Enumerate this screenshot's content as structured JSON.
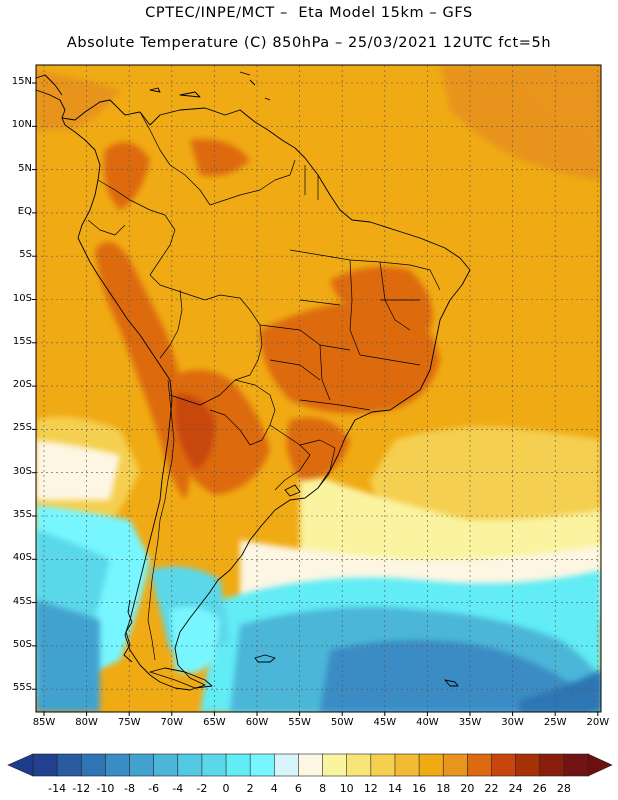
{
  "header": {
    "title_line1": "CPTEC/INPE/MCT –  Eta Model 15km – GFS",
    "title_line2": "Absolute Temperature (C) 850hPa – 25/03/2021 12UTC fct=5h"
  },
  "latitude_labels": [
    "15N",
    "10N",
    "5N",
    "EQ",
    "5S",
    "10S",
    "15S",
    "20S",
    "25S",
    "30S",
    "35S",
    "40S",
    "45S",
    "50S",
    "55S"
  ],
  "longitude_labels": [
    "85W",
    "80W",
    "75W",
    "70W",
    "65W",
    "60W",
    "55W",
    "50W",
    "45W",
    "40W",
    "35W",
    "30W",
    "25W",
    "20W"
  ],
  "colorbar": {
    "labels": [
      "-14",
      "-12",
      "-10",
      "-8",
      "-6",
      "-4",
      "-2",
      "0",
      "2",
      "4",
      "6",
      "8",
      "10",
      "12",
      "14",
      "16",
      "18",
      "20",
      "22",
      "24",
      "26",
      "28"
    ],
    "low_color": "#1e3c8c",
    "high_color": "#6e0f0f",
    "colors": [
      "#233f8f",
      "#2a5aa0",
      "#2f74b4",
      "#3a8cc4",
      "#42a2cf",
      "#4cb6d8",
      "#53c8e2",
      "#5ad8ea",
      "#62ecf5",
      "#78f6ff",
      "#d8f5fc",
      "#fdf6e3",
      "#faf3a0",
      "#f8e578",
      "#f5cf50",
      "#f2bb33",
      "#f0aa14",
      "#e8941d",
      "#dd6a10",
      "#c8460e",
      "#a83208",
      "#8a1e0c",
      "#731414"
    ]
  }
}
